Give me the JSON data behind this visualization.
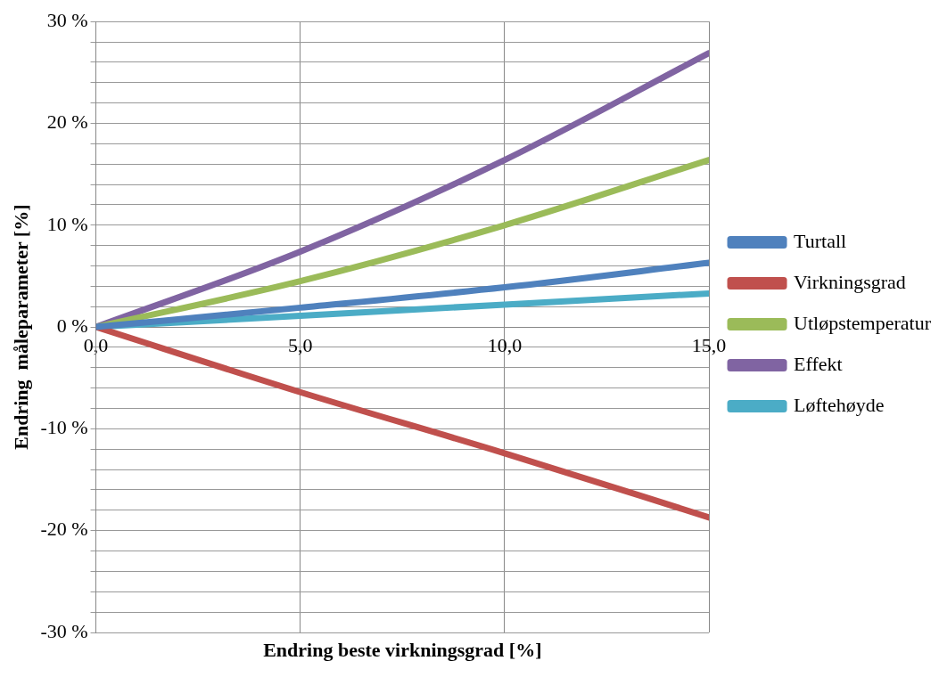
{
  "chart_data": {
    "type": "line",
    "xlabel": "Endring beste virkningsgrad [%]",
    "ylabel": "Endring  måleparameter [%]",
    "xlim": [
      0,
      15
    ],
    "xticks": [
      {
        "value": 0,
        "label": "0,0"
      },
      {
        "value": 5,
        "label": "5,0"
      },
      {
        "value": 10,
        "label": "10,0"
      },
      {
        "value": 15,
        "label": "15,0"
      }
    ],
    "ylim": [
      -30,
      30
    ],
    "yticks": [
      {
        "value": -30,
        "label": "-30 %"
      },
      {
        "value": -28,
        "label": null
      },
      {
        "value": -26,
        "label": null
      },
      {
        "value": -24,
        "label": null
      },
      {
        "value": -22,
        "label": null
      },
      {
        "value": -20,
        "label": "-20 %"
      },
      {
        "value": -18,
        "label": null
      },
      {
        "value": -16,
        "label": null
      },
      {
        "value": -14,
        "label": null
      },
      {
        "value": -12,
        "label": null
      },
      {
        "value": -10,
        "label": "-10 %"
      },
      {
        "value": -8,
        "label": null
      },
      {
        "value": -6,
        "label": null
      },
      {
        "value": -4,
        "label": null
      },
      {
        "value": -2,
        "label": null
      },
      {
        "value": 0,
        "label": "0 %"
      },
      {
        "value": 2,
        "label": null
      },
      {
        "value": 4,
        "label": null
      },
      {
        "value": 6,
        "label": null
      },
      {
        "value": 8,
        "label": null
      },
      {
        "value": 10,
        "label": "10 %"
      },
      {
        "value": 12,
        "label": null
      },
      {
        "value": 14,
        "label": null
      },
      {
        "value": 16,
        "label": null
      },
      {
        "value": 18,
        "label": null
      },
      {
        "value": 20,
        "label": "20 %"
      },
      {
        "value": 22,
        "label": null
      },
      {
        "value": 24,
        "label": null
      },
      {
        "value": 26,
        "label": null
      },
      {
        "value": 28,
        "label": null
      },
      {
        "value": 30,
        "label": "30 %"
      }
    ],
    "x": [
      0,
      5,
      10,
      15
    ],
    "grid": true,
    "legend": "right",
    "marker": "none",
    "line_style": "solid",
    "series": [
      {
        "name": "Turtall",
        "color": "#4f81bd",
        "values": [
          0,
          1.9,
          3.9,
          6.3
        ]
      },
      {
        "name": "Virkningsgrad",
        "color": "#c0504d",
        "values": [
          0,
          -6.4,
          -12.4,
          -18.7
        ]
      },
      {
        "name": "Utløpstemperatur",
        "color": "#9bbb59",
        "values": [
          0,
          4.5,
          10.0,
          16.4
        ]
      },
      {
        "name": "Effekt",
        "color": "#8064a2",
        "values": [
          0,
          7.4,
          16.4,
          26.9
        ]
      },
      {
        "name": "Løftehøyde",
        "color": "#4bacc6",
        "values": [
          0,
          1.1,
          2.2,
          3.3
        ]
      }
    ]
  }
}
